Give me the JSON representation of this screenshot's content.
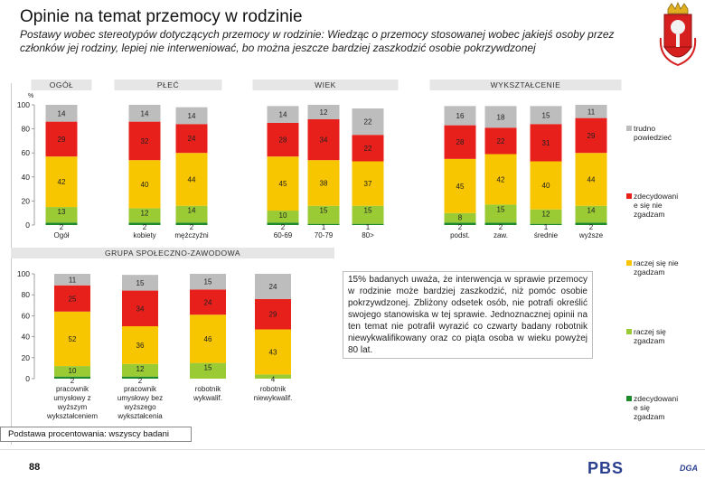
{
  "header": {
    "title": "Opinie na temat przemocy w rodzinie",
    "subtitle": "Postawy wobec stereotypów dotyczących przemocy w rodzinie: Wiedząc o przemocy stosowanej wobec jakiejś osoby przez członków jej rodziny, lepiej nie interweniować, bo można jeszcze bardziej zaszkodzić osobie pokrzywdzonej"
  },
  "colors": {
    "trudno": "#bdbdbd",
    "zdecydowanie_nie": "#e8201c",
    "raczej_nie": "#f7c600",
    "raczej_sie": "#9acb34",
    "zdecydowanie_sie": "#1f8a2c"
  },
  "legend": [
    {
      "key": "trudno",
      "label": "trudno powiedzieć"
    },
    {
      "key": "zdecydowanie_nie",
      "label": "zdecydowanie się nie zgadzam"
    },
    {
      "key": "raczej_nie",
      "label": "raczej się nie zgadzam"
    },
    {
      "key": "raczej_sie",
      "label": "raczej się zgadzam"
    },
    {
      "key": "zdecydowanie_sie",
      "label": "zdecydowanie się zgadzam"
    }
  ],
  "chart_data": [
    {
      "type": "bar",
      "stacked": true,
      "ylim": [
        0,
        100
      ],
      "yticks": [
        0,
        20,
        40,
        60,
        80,
        100
      ],
      "ytick_labels": [
        "0",
        "20",
        "40",
        "60",
        "80",
        "100"
      ],
      "groups": [
        {
          "label": "OGÓŁ",
          "start": 0,
          "end": 0
        },
        {
          "label": "PŁEĆ",
          "start": 1,
          "end": 2
        },
        {
          "label": "WIEK",
          "start": 3,
          "end": 5
        },
        {
          "label": "WYKSZTAŁCENIE",
          "start": 6,
          "end": 9
        }
      ],
      "categories": [
        "Ogół",
        "kobiety",
        "mężczyźni",
        "60-69",
        "70-79",
        "80>",
        "podst.",
        "zaw.",
        "średnie",
        "wyższe"
      ],
      "series": [
        {
          "key": "zdecydowanie_sie",
          "values": [
            2,
            2,
            2,
            2,
            1,
            1,
            2,
            2,
            1,
            2
          ],
          "labels": [
            "2",
            "2",
            "2",
            "2",
            "1",
            "1",
            "2",
            "2",
            "1",
            "2"
          ]
        },
        {
          "key": "raczej_sie",
          "values": [
            13,
            12,
            14,
            10,
            15,
            15,
            8,
            15,
            12,
            14
          ],
          "labels": [
            "13",
            "12",
            "14",
            "10",
            "15",
            "15",
            "8",
            "15",
            "12",
            "14"
          ]
        },
        {
          "key": "raczej_nie",
          "values": [
            42,
            40,
            44,
            45,
            38,
            37,
            45,
            42,
            40,
            44
          ],
          "labels": [
            "42",
            "40",
            "44",
            "45",
            "38",
            "37",
            "45",
            "42",
            "40",
            "44"
          ]
        },
        {
          "key": "zdecydowanie_nie",
          "values": [
            29,
            32,
            24,
            28,
            34,
            22,
            28,
            22,
            31,
            29
          ],
          "labels": [
            "29",
            "32",
            "24",
            "28",
            "34",
            "22",
            "28",
            "22",
            "31",
            "29"
          ]
        },
        {
          "key": "trudno",
          "values": [
            14,
            14,
            14,
            14,
            12,
            22,
            16,
            18,
            15,
            11
          ],
          "labels": [
            "14",
            "14",
            "14",
            "14",
            "12",
            "22",
            "16",
            "18",
            "15",
            "11"
          ]
        }
      ]
    },
    {
      "type": "bar",
      "stacked": true,
      "ylim": [
        0,
        100
      ],
      "yticks": [
        0,
        20,
        40,
        60,
        80,
        100
      ],
      "ytick_labels": [
        "0",
        "20",
        "40",
        "60",
        "80",
        "100"
      ],
      "groups": [
        {
          "label": "GRUPA SPOŁECZNO-ZAWODOWA",
          "start": 0,
          "end": 3
        }
      ],
      "categories": [
        "pracownik umysłowy z wyższym wykształceniem",
        "pracownik umysłowy bez wyższego wykształcenia",
        "robotnik wykwalif.",
        "robotnik niewykwalif."
      ],
      "series": [
        {
          "key": "zdecydowanie_sie",
          "values": [
            2,
            2,
            0,
            0
          ],
          "labels": [
            "2",
            "2",
            "",
            ""
          ]
        },
        {
          "key": "raczej_sie",
          "values": [
            10,
            12,
            15,
            4
          ],
          "labels": [
            "10",
            "12",
            "15",
            "4"
          ]
        },
        {
          "key": "raczej_nie",
          "values": [
            52,
            36,
            46,
            43
          ],
          "labels": [
            "52",
            "36",
            "46",
            "43"
          ]
        },
        {
          "key": "zdecydowanie_nie",
          "values": [
            25,
            34,
            24,
            29
          ],
          "labels": [
            "25",
            "34",
            "24",
            "29"
          ]
        },
        {
          "key": "trudno",
          "values": [
            11,
            15,
            15,
            24
          ],
          "labels": [
            "11",
            "15",
            "15",
            "24"
          ]
        }
      ]
    }
  ],
  "note": "15% badanych uważa, że interwencja w sprawie przemocy w rodzinie może bardziej zaszkodzić, niż pomóc osobie pokrzywdzonej. Zbliżony odsetek osób, nie potrafi określić swojego stanowiska w tej sprawie. Jednoznacznej opinii na ten temat nie potrafił wyrazić co czwarty badany robotnik niewykwalifikowany oraz co piąta osoba w wieku powyżej 80 lat.",
  "footer": {
    "base": "Podstawa procentowania: wszyscy badani",
    "page_number": "88",
    "logo": "PBS",
    "logo2": "DGA"
  },
  "axis_unit": "%"
}
